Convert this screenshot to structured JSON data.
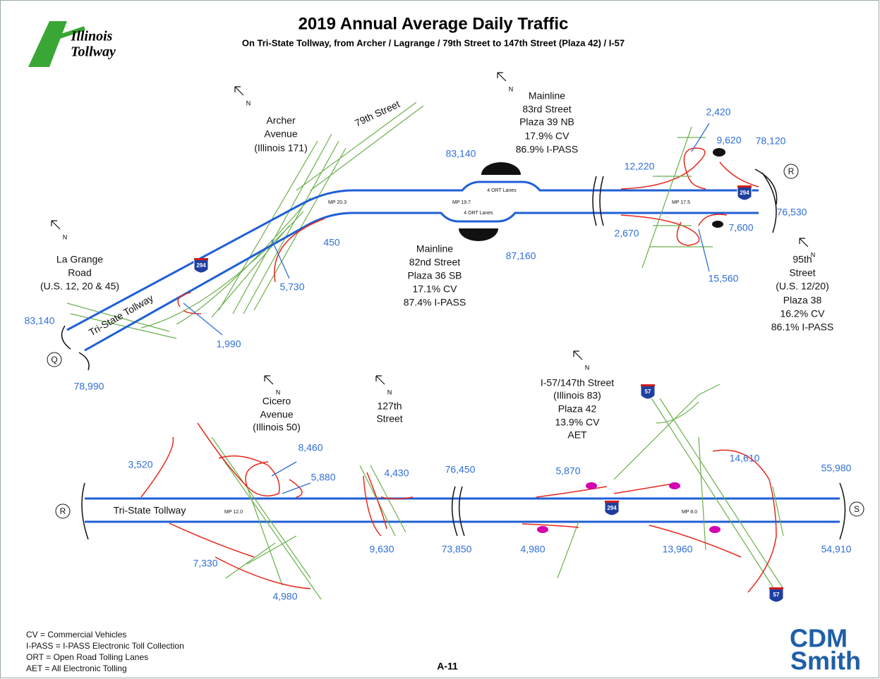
{
  "header": {
    "title": "2019 Annual Average Daily Traffic",
    "subtitle": "On Tri-State Tollway, from Archer / Lagrange / 79th Street to 147th Street (Plaza 42) / I-57",
    "logo_lines": [
      "Illinois",
      "Tollway"
    ]
  },
  "compass": [
    "N",
    "N",
    "N",
    "N",
    "N",
    "N",
    "N"
  ],
  "top": {
    "archer": [
      "Archer",
      "Avenue",
      "(Illinois 171)"
    ],
    "street_79": "79th Street",
    "plaza_39": [
      "Mainline",
      "83rd Street",
      "Plaza 39 NB",
      "17.9% CV",
      "86.9% I-PASS"
    ],
    "plaza_36": [
      "Mainline",
      "82nd Street",
      "Plaza 36 SB",
      "17.1% CV",
      "87.4% I-PASS"
    ],
    "plaza_38": [
      "95th",
      "Street",
      "(U.S. 12/20)",
      "Plaza 38",
      "16.2% CV",
      "86.1% I-PASS"
    ],
    "la_grange": [
      "La Grange",
      "Road",
      "(U.S. 12, 20 & 45)"
    ],
    "road_name": "Tri-State Tollway",
    "counts": [
      "83,140",
      "2,420",
      "9,620",
      "78,120",
      "12,220",
      "76,530",
      "7,600",
      "2,670",
      "15,560",
      "450",
      "87,160",
      "5,730",
      "1,990",
      "83,140",
      "78,990"
    ],
    "markers": [
      "MP 20.3",
      "MP 19.7",
      "MP 17.5"
    ],
    "ort": [
      "4 ORT Lanes",
      "4 ORT Lanes"
    ],
    "nodes": [
      "Q",
      "R"
    ],
    "shields": [
      "294",
      "294"
    ]
  },
  "bottom": {
    "cicero": [
      "Cicero",
      "Avenue",
      "(Illinois 50)"
    ],
    "street_127": [
      "127th",
      "Street"
    ],
    "plaza_42": [
      "I-57/147th Street",
      "(Illinois 83)",
      "Plaza 42",
      "13.9% CV",
      "AET"
    ],
    "road_name": "Tri-State Tollway",
    "counts": [
      "3,520",
      "8,460",
      "5,880",
      "4,430",
      "76,450",
      "5,870",
      "14,610",
      "55,980",
      "7,330",
      "4,980",
      "9,630",
      "73,850",
      "4,980",
      "13,960",
      "54,910"
    ],
    "markers": [
      "MP 12.0",
      "MP 8.0"
    ],
    "nodes": [
      "R",
      "S"
    ],
    "shields": [
      "294",
      "57",
      "57"
    ]
  },
  "footer": {
    "legend": [
      "CV = Commercial Vehicles",
      "I-PASS = I-PASS Electronic Toll Collection",
      "ORT = Open Road Tolling Lanes",
      "AET = All Electronic Tolling"
    ],
    "page": "A-11",
    "logo": [
      "CDM",
      "Smith"
    ]
  }
}
